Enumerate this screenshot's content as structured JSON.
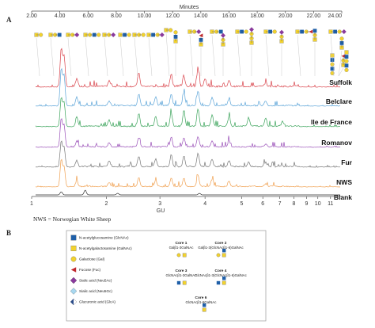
{
  "panel_labels": {
    "a": "A",
    "b": "B"
  },
  "note": "NWS = Norwegian White Sheep",
  "chart_data": {
    "type": "line",
    "top_axis_title": "Minutes",
    "top_ticks": [
      "2.00",
      "4.00",
      "6.00",
      "8.00",
      "10.00",
      "12.00",
      "14.00",
      "16.00",
      "18.00",
      "20.00",
      "22.00",
      "24.00"
    ],
    "top_range": [
      2,
      24
    ],
    "bottom_axis_title": "GU",
    "bottom_ticks": [
      {
        "label": "1",
        "min": 2.0
      },
      {
        "label": "2",
        "min": 7.3
      },
      {
        "label": "3",
        "min": 11.1
      },
      {
        "label": "4",
        "min": 14.3
      },
      {
        "label": "5",
        "min": 16.9
      },
      {
        "label": "6",
        "min": 18.4
      },
      {
        "label": "7",
        "min": 19.6
      },
      {
        "label": "8",
        "min": 20.6
      },
      {
        "label": "9",
        "min": 21.5
      },
      {
        "label": "10",
        "min": 22.3
      },
      {
        "label": "11",
        "min": 23.2
      }
    ],
    "series": [
      {
        "name": "Suffolk",
        "color": "#d9434b",
        "peaks": [
          [
            4.1,
            20
          ],
          [
            4.3,
            16
          ],
          [
            5.2,
            4
          ],
          [
            7.5,
            3
          ],
          [
            9.6,
            7
          ],
          [
            11.9,
            6
          ],
          [
            12.8,
            5
          ],
          [
            13.8,
            9
          ],
          [
            14.3,
            4
          ],
          [
            16.0,
            3
          ],
          [
            18.6,
            2
          ]
        ]
      },
      {
        "name": "Belclare",
        "color": "#5ba4d8",
        "peaks": [
          [
            4.1,
            22
          ],
          [
            4.3,
            18
          ],
          [
            5.2,
            5
          ],
          [
            7.5,
            3
          ],
          [
            9.6,
            7
          ],
          [
            10.8,
            5
          ],
          [
            11.9,
            7
          ],
          [
            12.8,
            8
          ],
          [
            13.8,
            9
          ],
          [
            14.8,
            5
          ],
          [
            16.0,
            4
          ],
          [
            18.6,
            3
          ]
        ]
      },
      {
        "name": "Ile de France",
        "color": "#3aa35a",
        "peaks": [
          [
            4.1,
            18
          ],
          [
            4.3,
            15
          ],
          [
            5.2,
            6
          ],
          [
            7.5,
            4
          ],
          [
            9.6,
            8
          ],
          [
            10.8,
            6
          ],
          [
            11.9,
            8
          ],
          [
            12.8,
            10
          ],
          [
            13.8,
            11
          ],
          [
            14.8,
            7
          ],
          [
            16.0,
            6
          ],
          [
            17.4,
            5
          ],
          [
            18.6,
            5
          ],
          [
            19.8,
            3
          ]
        ]
      },
      {
        "name": "Romanov",
        "color": "#9a50b8",
        "peaks": [
          [
            4.1,
            19
          ],
          [
            4.3,
            14
          ],
          [
            5.2,
            4
          ],
          [
            7.5,
            3
          ],
          [
            9.6,
            6
          ],
          [
            11.9,
            6
          ],
          [
            12.8,
            6
          ],
          [
            13.8,
            7
          ],
          [
            14.8,
            4
          ],
          [
            16.0,
            4
          ],
          [
            18.6,
            2
          ]
        ]
      },
      {
        "name": "Fur",
        "color": "#777777",
        "peaks": [
          [
            4.1,
            17
          ],
          [
            4.3,
            13
          ],
          [
            5.2,
            4
          ],
          [
            7.5,
            4
          ],
          [
            9.6,
            7
          ],
          [
            10.8,
            5
          ],
          [
            11.9,
            8
          ],
          [
            12.8,
            7
          ],
          [
            13.8,
            9
          ],
          [
            14.8,
            5
          ],
          [
            16.0,
            4
          ],
          [
            17.4,
            3
          ],
          [
            18.6,
            3
          ]
        ]
      },
      {
        "name": "NWS",
        "color": "#f0a050",
        "peaks": [
          [
            4.1,
            19
          ],
          [
            4.3,
            14
          ],
          [
            5.2,
            4
          ],
          [
            7.5,
            3
          ],
          [
            9.6,
            6
          ],
          [
            10.8,
            4
          ],
          [
            11.9,
            6
          ],
          [
            12.8,
            6
          ],
          [
            13.8,
            8
          ],
          [
            14.8,
            5
          ],
          [
            16.0,
            4
          ],
          [
            18.6,
            2
          ]
        ]
      },
      {
        "name": "Blank",
        "color": "#333333",
        "peaks": [
          [
            4.1,
            2
          ],
          [
            5.8,
            3
          ],
          [
            8.1,
            1
          ],
          [
            13.9,
            1
          ]
        ]
      }
    ]
  },
  "legend": {
    "items": [
      {
        "name": "N-acetylglucosamine (GlcNAc)",
        "color": "#1f5fa8",
        "shape": "square"
      },
      {
        "name": "N-acetylgalactosamine (GalNAc)",
        "color": "#f2d22e",
        "shape": "square"
      },
      {
        "name": "Galactose (Gal)",
        "color": "#f2d22e",
        "shape": "circle"
      },
      {
        "name": "Fucose (Fuc)",
        "color": "#c0282d",
        "shape": "triangle"
      },
      {
        "name": "Sialic acid (Neu5Ac)",
        "color": "#8a3a9c",
        "shape": "diamond"
      },
      {
        "name": "Sialic acid (Neu5Gc)",
        "color": "#a8d8f0",
        "shape": "diamond"
      },
      {
        "name": "Glucuronic acid (GlcA)",
        "color": "#2b4c8a",
        "shape": "half-diamond"
      }
    ],
    "cores": [
      {
        "title": "Core 1",
        "desc": "Galβ1-3GalNAc"
      },
      {
        "title": "Core 2",
        "desc": "Galβ1-3(GlcNAcβ1-6)GalNAc"
      },
      {
        "title": "Core 3",
        "desc": "GlcNAcβ1-3GalNAc"
      },
      {
        "title": "Core 4",
        "desc": "GlcNAcβ1-3(GlcNAcβ1-6)GalNAc"
      },
      {
        "title": "Core 6",
        "desc": "GlcNAcβ1-6GalNAc"
      }
    ]
  }
}
